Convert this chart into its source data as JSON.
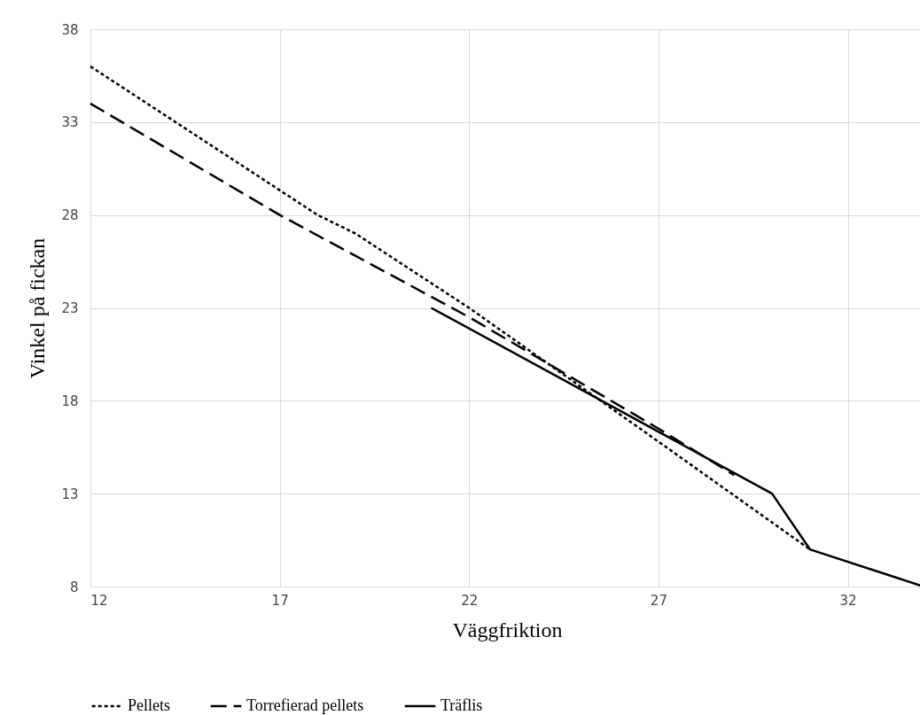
{
  "chart_data": {
    "type": "line",
    "xlabel": "Väggfriktion",
    "ylabel": "Vinkel på fickan",
    "xlim": [
      12,
      34
    ],
    "ylim": [
      8,
      38
    ],
    "xticks": [
      12,
      17,
      22,
      27,
      32
    ],
    "yticks": [
      8,
      13,
      18,
      23,
      28,
      33,
      38
    ],
    "grid": true,
    "legend": "bottom",
    "marker": "none",
    "series": [
      {
        "name": "Pellets",
        "color": "#000000",
        "line_style": "dotted",
        "x": [
          12,
          18,
          19,
          22,
          27,
          31
        ],
        "values": [
          36,
          28,
          27,
          23,
          15.8,
          10
        ]
      },
      {
        "name": "Torrefierad pellets",
        "color": "#000000",
        "line_style": "dashed",
        "x": [
          12,
          17,
          22,
          27,
          29
        ],
        "values": [
          34,
          28,
          22.5,
          16.5,
          14
        ]
      },
      {
        "name": "Träflis",
        "color": "#000000",
        "line_style": "solid",
        "x": [
          21,
          30,
          31,
          34
        ],
        "values": [
          23,
          13,
          10,
          8
        ]
      }
    ]
  }
}
